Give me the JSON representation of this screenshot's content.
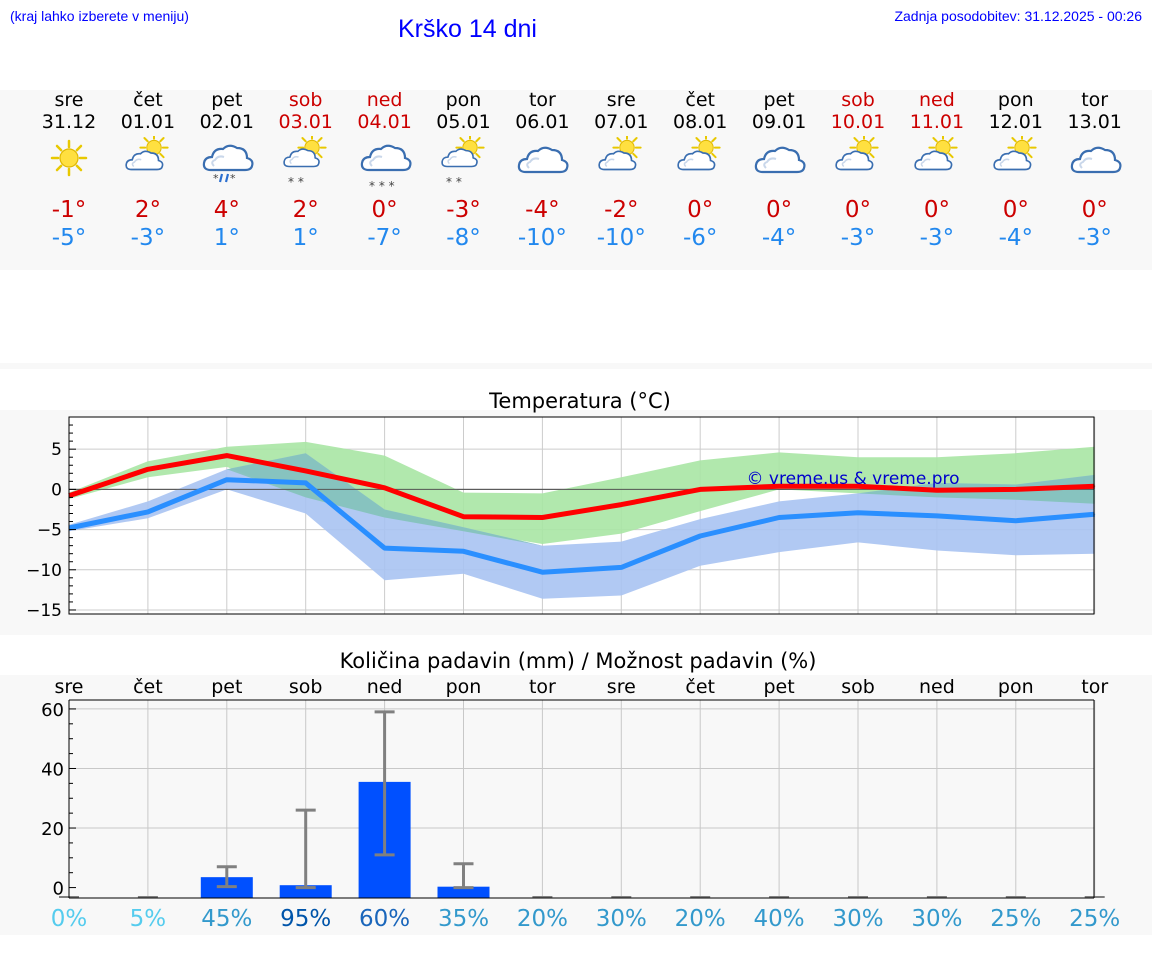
{
  "header": {
    "location_hint": "(kraj lahko izberete v meniju)",
    "title": "Krško 14 dni",
    "updated": "Zadnja posodobitev: 31.12.2025 - 00:26"
  },
  "days": [
    {
      "dow": "sre",
      "date": "31.12",
      "weekend": false,
      "icon": "sun-icon",
      "tmax": "-1°",
      "tmin": "-5°"
    },
    {
      "dow": "čet",
      "date": "01.01",
      "weekend": false,
      "icon": "partly-cloudy-icon",
      "tmax": "2°",
      "tmin": "-3°"
    },
    {
      "dow": "pet",
      "date": "02.01",
      "weekend": false,
      "icon": "cloudy-rain-snow-icon",
      "tmax": "4°",
      "tmin": "1°"
    },
    {
      "dow": "sob",
      "date": "03.01",
      "weekend": true,
      "icon": "partly-cloudy-snow-icon",
      "tmax": "2°",
      "tmin": "1°"
    },
    {
      "dow": "ned",
      "date": "04.01",
      "weekend": true,
      "icon": "cloudy-snow-icon",
      "tmax": "0°",
      "tmin": "-7°"
    },
    {
      "dow": "pon",
      "date": "05.01",
      "weekend": false,
      "icon": "partly-cloudy-snow-icon",
      "tmax": "-3°",
      "tmin": "-8°"
    },
    {
      "dow": "tor",
      "date": "06.01",
      "weekend": false,
      "icon": "cloudy-icon",
      "tmax": "-4°",
      "tmin": "-10°"
    },
    {
      "dow": "sre",
      "date": "07.01",
      "weekend": false,
      "icon": "partly-cloudy-icon",
      "tmax": "-2°",
      "tmin": "-10°"
    },
    {
      "dow": "čet",
      "date": "08.01",
      "weekend": false,
      "icon": "partly-cloudy-icon",
      "tmax": "0°",
      "tmin": "-6°"
    },
    {
      "dow": "pet",
      "date": "09.01",
      "weekend": false,
      "icon": "cloudy-icon",
      "tmax": "0°",
      "tmin": "-4°"
    },
    {
      "dow": "sob",
      "date": "10.01",
      "weekend": true,
      "icon": "partly-cloudy-icon",
      "tmax": "0°",
      "tmin": "-3°"
    },
    {
      "dow": "ned",
      "date": "11.01",
      "weekend": true,
      "icon": "partly-cloudy-icon",
      "tmax": "0°",
      "tmin": "-3°"
    },
    {
      "dow": "pon",
      "date": "12.01",
      "weekend": false,
      "icon": "partly-cloudy-icon",
      "tmax": "0°",
      "tmin": "-4°"
    },
    {
      "dow": "tor",
      "date": "13.01",
      "weekend": false,
      "icon": "cloudy-icon",
      "tmax": "0°",
      "tmin": "-3°"
    }
  ],
  "colors": {
    "title_blue": "#0000ff",
    "tmax_red": "#cc0000",
    "tmin_blue": "#2288ee",
    "weekend_red": "#cc0000",
    "max_line": "#ff0000",
    "min_line": "#2a8fff",
    "max_band": "#a9e6a4",
    "min_band": "#a9c3f2",
    "overlap_band": "#7cc2b0",
    "precip_bar": "#0050ff",
    "whisker": "#808080",
    "watermark": "#0000cc"
  },
  "chart_data": [
    {
      "type": "line",
      "title": "Temperatura (°C)",
      "xlabel": "",
      "ylabel": "",
      "ylim": [
        -15.5,
        9
      ],
      "yticks": [
        5,
        0,
        -5,
        -10,
        -15
      ],
      "ytick_labels": [
        "5",
        "0",
        "−5",
        "−10",
        "−15"
      ],
      "x": [
        0,
        1,
        2,
        3,
        4,
        5,
        6,
        7,
        8,
        9,
        10,
        11,
        12,
        13
      ],
      "series": [
        {
          "name": "max",
          "values": [
            -0.8,
            2.5,
            4.2,
            2.3,
            0.2,
            -3.4,
            -3.5,
            -1.9,
            0,
            0.4,
            0.4,
            -0.1,
            0,
            0.4
          ]
        },
        {
          "name": "min",
          "values": [
            -4.8,
            -2.8,
            1.2,
            0.8,
            -7.3,
            -7.7,
            -10.3,
            -9.7,
            -5.8,
            -3.5,
            -2.9,
            -3.3,
            -3.9,
            -3.1
          ]
        },
        {
          "name": "max_range_high",
          "values": [
            -0.4,
            3.5,
            5.3,
            5.9,
            4.2,
            -0.4,
            -0.5,
            1.5,
            3.6,
            4.6,
            4.0,
            4.0,
            4.5,
            5.3
          ]
        },
        {
          "name": "max_range_low",
          "values": [
            -1.2,
            1.5,
            2.8,
            -1.0,
            -3.5,
            -5.2,
            -6.8,
            -5.5,
            -2.7,
            0.0,
            -0.5,
            -1.0,
            -1.3,
            -1.8
          ]
        },
        {
          "name": "min_range_high",
          "values": [
            -4.4,
            -1.5,
            2.5,
            4.5,
            -2.5,
            -4.7,
            -7.0,
            -6.5,
            -3.7,
            -1.5,
            -0.5,
            0.8,
            0.6,
            1.8
          ]
        },
        {
          "name": "min_range_low",
          "values": [
            -5.2,
            -3.6,
            0.0,
            -3.0,
            -11.3,
            -10.5,
            -13.6,
            -13.2,
            -9.5,
            -7.8,
            -6.6,
            -7.6,
            -8.2,
            -8.0
          ]
        }
      ],
      "watermark": "© vreme.us & vreme.pro"
    },
    {
      "type": "bar",
      "title": "Količina padavin (mm) / Možnost padavin (%)",
      "categories": [
        "sre",
        "čet",
        "pet",
        "sob",
        "ned",
        "pon",
        "tor",
        "sre",
        "čet",
        "pet",
        "sob",
        "ned",
        "pon",
        "tor"
      ],
      "values": [
        0,
        0,
        3.5,
        0.8,
        35.5,
        0.3,
        0,
        0,
        0,
        0,
        0,
        0,
        0,
        0
      ],
      "error_high": [
        0,
        0,
        7.0,
        26,
        59,
        8.0,
        0,
        0,
        0,
        0,
        0,
        0,
        0,
        0
      ],
      "error_low": [
        0,
        0,
        0.3,
        0,
        11,
        0,
        0,
        0,
        0,
        0,
        0,
        0,
        0,
        0
      ],
      "ylim": [
        -3.5,
        63
      ],
      "yticks": [
        60,
        40,
        20,
        0
      ],
      "ytick_labels": [
        "60",
        "40",
        "20",
        "0"
      ],
      "probabilities": [
        {
          "label": "0%",
          "color": "#55ccee"
        },
        {
          "label": "5%",
          "color": "#55ccee"
        },
        {
          "label": "45%",
          "color": "#3399cc"
        },
        {
          "label": "95%",
          "color": "#0055aa"
        },
        {
          "label": "60%",
          "color": "#1a66bb"
        },
        {
          "label": "35%",
          "color": "#3399cc"
        },
        {
          "label": "20%",
          "color": "#3399cc"
        },
        {
          "label": "30%",
          "color": "#3399cc"
        },
        {
          "label": "20%",
          "color": "#3399cc"
        },
        {
          "label": "40%",
          "color": "#3399cc"
        },
        {
          "label": "30%",
          "color": "#3399cc"
        },
        {
          "label": "30%",
          "color": "#3399cc"
        },
        {
          "label": "25%",
          "color": "#3399cc"
        },
        {
          "label": "25%",
          "color": "#3399cc"
        }
      ]
    }
  ]
}
